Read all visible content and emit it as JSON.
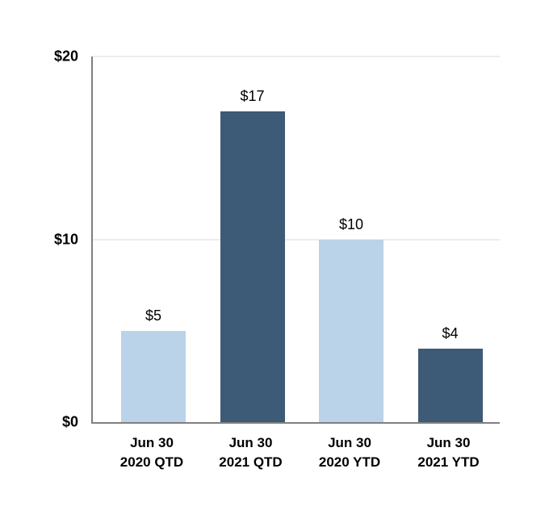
{
  "chart_data": {
    "type": "bar",
    "title": "",
    "xlabel": "",
    "ylabel": "",
    "categories": [
      "Jun 30 2020 QTD",
      "Jun 30 2021 QTD",
      "Jun 30 2020 YTD",
      "Jun 30 2021 YTD"
    ],
    "category_lines": [
      [
        "Jun 30",
        "2020 QTD"
      ],
      [
        "Jun 30",
        "2021 QTD"
      ],
      [
        "Jun 30",
        "2020 YTD"
      ],
      [
        "Jun 30",
        "2021 YTD"
      ]
    ],
    "values": [
      5,
      17,
      10,
      4
    ],
    "value_labels": [
      "$5",
      "$17",
      "$10",
      "$4"
    ],
    "bar_colors": [
      "#bad3e8",
      "#3d5a76",
      "#bad3e8",
      "#3d5a76"
    ],
    "y_tick_values": [
      0,
      10,
      20
    ],
    "y_tick_labels": [
      "$0",
      "$10",
      "$20"
    ],
    "ylim": [
      0,
      20
    ],
    "grid": "horizontal gridlines at $10 and $20",
    "legend": "none"
  },
  "colors": {
    "bar_light": "#bad3e8",
    "bar_dark": "#3d5a76",
    "axis_line": "#808080",
    "gridline": "#ececec",
    "text": "#000000",
    "background": "#ffffff"
  }
}
